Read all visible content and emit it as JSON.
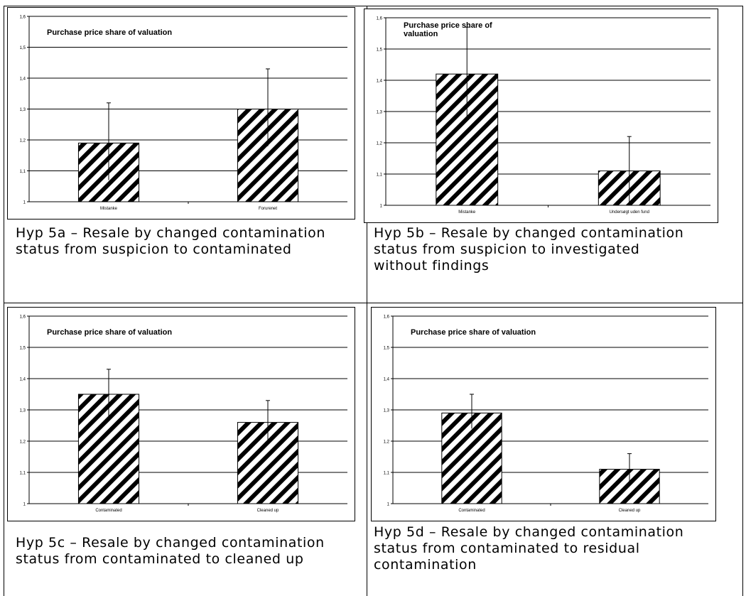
{
  "chart_data": [
    {
      "type": "bar",
      "title": "Purchase price share of valuation",
      "categories": [
        "Mistanke",
        "Forurenet"
      ],
      "values": [
        1.19,
        1.3
      ],
      "error_upper": [
        1.32,
        1.43
      ],
      "error_lower": [
        1.07,
        1.18
      ],
      "ylim": [
        1,
        1.6
      ],
      "yticks": [
        "1",
        "1,1",
        "1,2",
        "1,3",
        "1,4",
        "1,5",
        "1,6"
      ],
      "grid": true,
      "fill": "diagonal-hatch"
    },
    {
      "type": "bar",
      "title": "Purchase price share of valuation",
      "title_lines": [
        "Purchase price share of",
        "valuation"
      ],
      "categories": [
        "Mistanke",
        "Undersøgt uden fund"
      ],
      "values": [
        1.42,
        1.11
      ],
      "error_upper": [
        1.57,
        1.22
      ],
      "error_lower": [
        1.28,
        1.0
      ],
      "ylim": [
        1,
        1.6
      ],
      "yticks": [
        "1",
        "1,1",
        "1,2",
        "1,3",
        "1,4",
        "1,5",
        "1,6"
      ],
      "grid": true,
      "fill": "diagonal-hatch"
    },
    {
      "type": "bar",
      "title": "Purchase price share of valuation",
      "categories": [
        "Contaminated",
        "Cleaned up"
      ],
      "values": [
        1.35,
        1.26
      ],
      "error_upper": [
        1.43,
        1.33
      ],
      "error_lower": [
        1.27,
        1.19
      ],
      "ylim": [
        1,
        1.6
      ],
      "yticks": [
        "1",
        "1,1",
        "1,2",
        "1,3",
        "1,4",
        "1,5",
        "1,6"
      ],
      "grid": true,
      "fill": "diagonal-hatch"
    },
    {
      "type": "bar",
      "title": "Purchase price share of valuation",
      "categories": [
        "Contaminated",
        "Cleaned up"
      ],
      "values": [
        1.29,
        1.11
      ],
      "error_upper": [
        1.35,
        1.16
      ],
      "error_lower": [
        1.24,
        1.06
      ],
      "ylim": [
        1,
        1.6
      ],
      "yticks": [
        "1",
        "1,1",
        "1,2",
        "1,3",
        "1,4",
        "1,5",
        "1,6"
      ],
      "grid": true,
      "fill": "diagonal-hatch"
    }
  ],
  "captions": [
    "Hyp 5a – Resale by changed contamination\nstatus from suspicion to contaminated",
    "Hyp 5b – Resale by changed contamination\nstatus from suspicion to investigated\nwithout findings",
    "Hyp 5c – Resale by changed contamination\nstatus from contaminated to cleaned up",
    " Hyp 5d – Resale by changed contamination\nstatus from contaminated to residual\ncontamination"
  ],
  "colors": {
    "line": "#000000",
    "background": "#ffffff"
  }
}
